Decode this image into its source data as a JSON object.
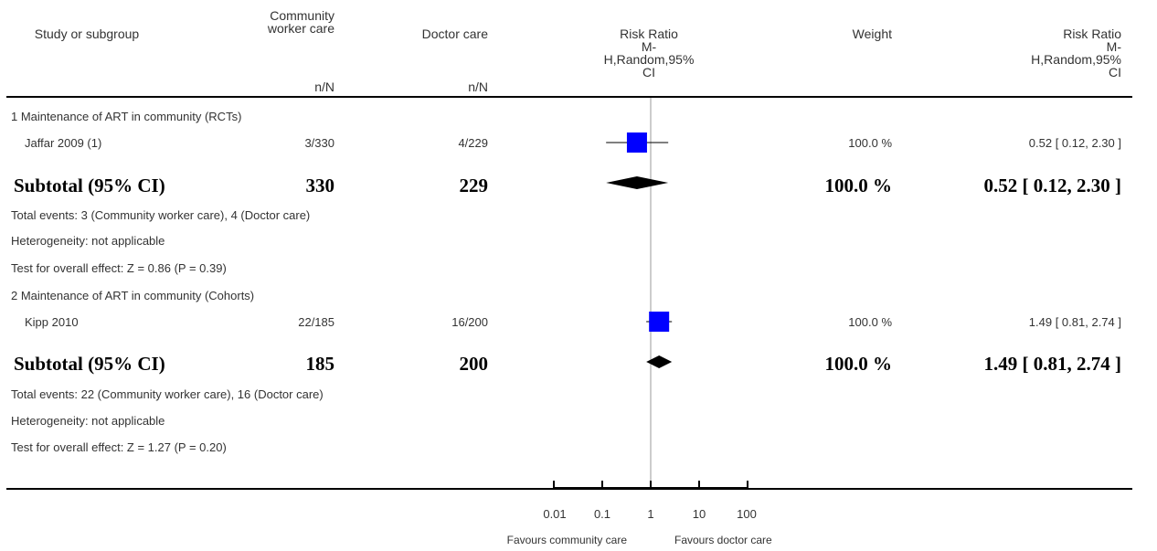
{
  "header": {
    "study": "Study or subgroup",
    "group1": "Community\nworker care",
    "group2": "Doctor care",
    "group1_unit": "n/N",
    "group2_unit": "n/N",
    "plot_header": "Risk Ratio\nM-\nH,Random,95%\nCI",
    "weight": "Weight",
    "ci_header": "Risk Ratio\nM-\nH,Random,95%\nCI"
  },
  "subgroups": [
    {
      "title": "1 Maintenance of ART in community (RCTs)",
      "studies": [
        {
          "name": "Jaffar 2009 (1)",
          "g1": "3/330",
          "g2": "4/229",
          "weight": "100.0 %",
          "ci": "0.52 [ 0.12, 2.30 ]"
        }
      ],
      "subtotal": {
        "label": "Subtotal (95% CI)",
        "g1": "330",
        "g2": "229",
        "weight": "100.0 %",
        "ci": "0.52 [ 0.12, 2.30 ]"
      },
      "total_events": "Total events: 3 (Community worker care), 4 (Doctor care)",
      "heterogeneity": "Heterogeneity: not applicable",
      "overall_effect": "Test for overall effect: Z = 0.86 (P = 0.39)"
    },
    {
      "title": "2 Maintenance of ART in community (Cohorts)",
      "studies": [
        {
          "name": "Kipp 2010",
          "g1": "22/185",
          "g2": "16/200",
          "weight": "100.0 %",
          "ci": "1.49 [ 0.81, 2.74 ]"
        }
      ],
      "subtotal": {
        "label": "Subtotal (95% CI)",
        "g1": "185",
        "g2": "200",
        "weight": "100.0 %",
        "ci": "1.49 [ 0.81, 2.74 ]"
      },
      "total_events": "Total events: 22 (Community worker care), 16 (Doctor care)",
      "heterogeneity": "Heterogeneity: not applicable",
      "overall_effect": "Test for overall effect: Z = 1.27 (P = 0.20)"
    }
  ],
  "axis": {
    "ticks": [
      "0.01",
      "0.1",
      "1",
      "10",
      "100"
    ],
    "favours_left": "Favours community care",
    "favours_right": "Favours doctor care"
  },
  "chart_data": {
    "type": "forest",
    "scale": "log",
    "xlim": [
      0.01,
      100
    ],
    "ticks": [
      0.01,
      0.1,
      1,
      10,
      100
    ],
    "null_line": 1,
    "studies": [
      {
        "name": "Jaffar 2009 (1)",
        "estimate": 0.52,
        "lower": 0.12,
        "upper": 2.3,
        "weight": 100.0
      },
      {
        "name": "Kipp 2010",
        "estimate": 1.49,
        "lower": 0.81,
        "upper": 2.74,
        "weight": 100.0
      }
    ],
    "subtotals": [
      {
        "label": "Subtotal (95% CI)",
        "estimate": 0.52,
        "lower": 0.12,
        "upper": 2.3
      },
      {
        "label": "Subtotal (95% CI)",
        "estimate": 1.49,
        "lower": 0.81,
        "upper": 2.74
      }
    ],
    "colors": {
      "study_marker": "#0000ff",
      "diamond": "#000000",
      "null_line": "#999999"
    }
  }
}
